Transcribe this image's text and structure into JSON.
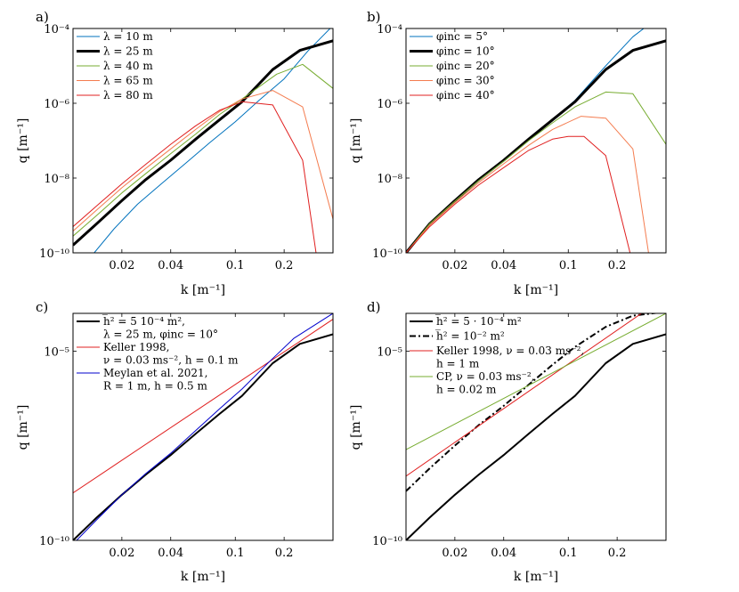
{
  "chart_data": [
    {
      "type": "line",
      "panel_label": "a)",
      "xlabel": "k [m⁻¹]",
      "ylabel": "q [m⁻¹]",
      "xscale": "log",
      "yscale": "log",
      "xlim": [
        0.01,
        0.4
      ],
      "ylim": [
        1e-10,
        0.0001
      ],
      "xticks": [
        0.02,
        0.04,
        0.1,
        0.2
      ],
      "xtick_labels": [
        "0.02",
        "0.04",
        "0.1",
        "0.2"
      ],
      "yticks": [
        1e-10,
        1e-08,
        1e-06,
        0.0001
      ],
      "ytick_labels": [
        "10⁻¹⁰",
        "10⁻⁸",
        "10⁻⁶",
        "10⁻⁴"
      ],
      "legend_location": "top-left",
      "series": [
        {
          "name": "λ = 10 m",
          "color": "#0072BD",
          "width": 1,
          "x": [
            0.01,
            0.0135,
            0.018,
            0.025,
            0.035,
            0.05,
            0.07,
            0.1,
            0.14,
            0.2,
            0.28,
            0.4
          ],
          "y": [
            1e-11,
            1e-10,
            4.5e-10,
            2e-09,
            7e-09,
            2.6e-08,
            9e-08,
            3.2e-07,
            1.2e-06,
            4.5e-06,
            2.5e-05,
            0.00012
          ]
        },
        {
          "name": "λ = 25 m",
          "color": "#000000",
          "width": 3,
          "x": [
            0.01,
            0.014,
            0.02,
            0.028,
            0.04,
            0.057,
            0.08,
            0.11,
            0.17,
            0.25,
            0.4
          ],
          "y": [
            1.6e-10,
            6e-10,
            2.5e-09,
            9e-09,
            3e-08,
            1.1e-07,
            3.6e-07,
            1.1e-06,
            8e-06,
            2.6e-05,
            4.7e-05
          ]
        },
        {
          "name": "λ = 40 m",
          "color": "#77AC30",
          "width": 1,
          "x": [
            0.01,
            0.014,
            0.02,
            0.028,
            0.04,
            0.057,
            0.08,
            0.11,
            0.18,
            0.26,
            0.4
          ],
          "y": [
            2.8e-10,
            1e-09,
            4e-09,
            1.3e-08,
            4.5e-08,
            1.5e-07,
            5e-07,
            1.3e-06,
            6e-06,
            1.1e-05,
            2.5e-06
          ]
        },
        {
          "name": "λ = 65 m",
          "color": "#F47C4F",
          "width": 1,
          "x": [
            0.01,
            0.014,
            0.02,
            0.028,
            0.04,
            0.057,
            0.08,
            0.11,
            0.17,
            0.26,
            0.4
          ],
          "y": [
            3.8e-10,
            1.4e-09,
            5.5e-09,
            1.8e-08,
            6e-08,
            2e-07,
            6e-07,
            1.3e-06,
            2.2e-06,
            8e-07,
            8e-10
          ]
        },
        {
          "name": "λ = 80 m",
          "color": "#E02020",
          "width": 1,
          "x": [
            0.01,
            0.014,
            0.02,
            0.028,
            0.04,
            0.057,
            0.08,
            0.11,
            0.17,
            0.26,
            0.32
          ],
          "y": [
            5e-10,
            1.8e-09,
            7e-09,
            2.3e-08,
            8e-08,
            2.5e-07,
            6.5e-07,
            1.1e-06,
            9e-07,
            3e-08,
            6e-11
          ]
        }
      ]
    },
    {
      "type": "line",
      "panel_label": "b)",
      "xlabel": "k [m⁻¹]",
      "ylabel": "q [m⁻¹]",
      "xscale": "log",
      "yscale": "log",
      "xlim": [
        0.01,
        0.4
      ],
      "ylim": [
        1e-10,
        0.0001
      ],
      "xticks": [
        0.02,
        0.04,
        0.1,
        0.2
      ],
      "xtick_labels": [
        "0.02",
        "0.04",
        "0.1",
        "0.2"
      ],
      "yticks": [
        1e-10,
        1e-08,
        1e-06,
        0.0001
      ],
      "ytick_labels": [
        "10⁻¹⁰",
        "10⁻⁸",
        "10⁻⁶",
        "10⁻⁴"
      ],
      "legend_location": "top-left",
      "series": [
        {
          "name": "φinc = 5°",
          "color": "#0072BD",
          "width": 1,
          "x": [
            0.01,
            0.014,
            0.02,
            0.028,
            0.04,
            0.057,
            0.08,
            0.11,
            0.17,
            0.25,
            0.3
          ],
          "y": [
            1e-10,
            6e-10,
            2.5e-09,
            9e-09,
            3e-08,
            1.1e-07,
            3.6e-07,
            1.2e-06,
            1e-05,
            6e-05,
            0.00011
          ]
        },
        {
          "name": "φinc = 10°",
          "color": "#000000",
          "width": 3,
          "x": [
            0.01,
            0.014,
            0.02,
            0.028,
            0.04,
            0.057,
            0.08,
            0.11,
            0.17,
            0.25,
            0.4
          ],
          "y": [
            1e-10,
            6e-10,
            2.5e-09,
            9e-09,
            3e-08,
            1.1e-07,
            3.6e-07,
            1.1e-06,
            8e-06,
            2.6e-05,
            4.7e-05
          ]
        },
        {
          "name": "φinc = 20°",
          "color": "#77AC30",
          "width": 1,
          "x": [
            0.01,
            0.014,
            0.02,
            0.028,
            0.04,
            0.057,
            0.08,
            0.11,
            0.17,
            0.25,
            0.4
          ],
          "y": [
            1e-10,
            6e-10,
            2.4e-09,
            8.5e-09,
            2.8e-08,
            1e-07,
            3e-07,
            8e-07,
            2e-06,
            1.8e-06,
            8e-08
          ]
        },
        {
          "name": "φinc = 30°",
          "color": "#F47C4F",
          "width": 1,
          "x": [
            0.01,
            0.014,
            0.02,
            0.028,
            0.04,
            0.057,
            0.08,
            0.12,
            0.17,
            0.25,
            0.32
          ],
          "y": [
            1e-10,
            5.5e-10,
            2.2e-09,
            7.5e-09,
            2.4e-08,
            7.5e-08,
            2e-07,
            4.5e-07,
            4e-07,
            6e-08,
            5e-11
          ]
        },
        {
          "name": "φinc = 40°",
          "color": "#E02020",
          "width": 1,
          "x": [
            0.01,
            0.014,
            0.02,
            0.028,
            0.04,
            0.057,
            0.08,
            0.1,
            0.125,
            0.17,
            0.25
          ],
          "y": [
            1e-10,
            5e-10,
            2e-09,
            6.5e-09,
            1.9e-08,
            5.5e-08,
            1.1e-07,
            1.3e-07,
            1.3e-07,
            4e-08,
            5e-11
          ]
        }
      ]
    },
    {
      "type": "line",
      "panel_label": "c)",
      "xlabel": "k [m⁻¹]",
      "ylabel": "q [m⁻¹]",
      "xscale": "log",
      "yscale": "log",
      "xlim": [
        0.01,
        0.4
      ],
      "ylim": [
        1e-10,
        0.0001
      ],
      "xticks": [
        0.02,
        0.04,
        0.1,
        0.2
      ],
      "xtick_labels": [
        "0.02",
        "0.04",
        "0.1",
        "0.2"
      ],
      "yticks": [
        1e-10,
        1e-05
      ],
      "ytick_labels": [
        "10⁻¹⁰",
        "10⁻⁵"
      ],
      "legend_location": "top-left",
      "series": [
        {
          "name_lines": [
            "h̅² = 5 10⁻⁴ m²,",
            "λ = 25 m, φinc = 10°"
          ],
          "color": "#000000",
          "width": 2,
          "x": [
            0.01,
            0.014,
            0.02,
            0.028,
            0.04,
            0.057,
            0.08,
            0.11,
            0.17,
            0.25,
            0.4
          ],
          "y": [
            1e-10,
            4e-10,
            1.6e-09,
            5.4e-09,
            1.8e-08,
            6.6e-08,
            2.2e-07,
            6.6e-07,
            4.8e-06,
            1.56e-05,
            2.8e-05
          ]
        },
        {
          "name_lines": [
            "Keller 1998,",
            "ν = 0.03 ms⁻², h = 0.1 m"
          ],
          "color": "#E02020",
          "width": 1,
          "x": [
            0.01,
            0.4
          ],
          "y": [
            1.8e-09,
            7e-05
          ]
        },
        {
          "name_lines": [
            "Meylan et al. 2021,",
            "R = 1 m, h = 0.5 m"
          ],
          "color": "#0000CC",
          "width": 1,
          "x": [
            0.01,
            0.014,
            0.02,
            0.028,
            0.04,
            0.057,
            0.08,
            0.11,
            0.16,
            0.23,
            0.4
          ],
          "y": [
            8e-11,
            3.5e-10,
            1.6e-09,
            5.8e-09,
            2e-08,
            8e-08,
            3e-07,
            1e-06,
            5e-06,
            2.2e-05,
            0.0001
          ]
        }
      ]
    },
    {
      "type": "line",
      "panel_label": "d)",
      "xlabel": "k [m⁻¹]",
      "ylabel": "q [m⁻¹]",
      "xscale": "log",
      "yscale": "log",
      "xlim": [
        0.01,
        0.4
      ],
      "ylim": [
        1e-10,
        0.0001
      ],
      "xticks": [
        0.02,
        0.04,
        0.1,
        0.2
      ],
      "xtick_labels": [
        "0.02",
        "0.04",
        "0.1",
        "0.2"
      ],
      "yticks": [
        1e-10,
        1e-05
      ],
      "ytick_labels": [
        "10⁻¹⁰",
        "10⁻⁵"
      ],
      "legend_location": "top-left",
      "series": [
        {
          "name_lines": [
            "h̅² = 5 · 10⁻⁴ m²"
          ],
          "color": "#000000",
          "width": 2,
          "dash": "",
          "x": [
            0.01,
            0.014,
            0.02,
            0.028,
            0.04,
            0.057,
            0.08,
            0.11,
            0.17,
            0.25,
            0.4
          ],
          "y": [
            1e-10,
            4e-10,
            1.6e-09,
            5.4e-09,
            1.8e-08,
            6.6e-08,
            2.2e-07,
            6.6e-07,
            4.8e-06,
            1.56e-05,
            2.8e-05
          ]
        },
        {
          "name_lines": [
            "h̅² = 10⁻² m²"
          ],
          "color": "#000000",
          "width": 2,
          "dash": "7,3,2,3",
          "x": [
            0.01,
            0.014,
            0.02,
            0.028,
            0.04,
            0.057,
            0.08,
            0.11,
            0.17,
            0.25,
            0.4
          ],
          "y": [
            2e-09,
            8e-09,
            3.2e-08,
            1.1e-07,
            3.6e-07,
            1.3e-06,
            4.4e-06,
            1.3e-05,
            4.4e-05,
            8.7e-05,
            0.00011
          ]
        },
        {
          "name_lines": [
            "Keller 1998, ν = 0.03 ms⁻²,",
            "h = 1 m"
          ],
          "color": "#E02020",
          "width": 1,
          "dash": "",
          "x": [
            0.01,
            0.4
          ],
          "y": [
            5e-09,
            0.00028
          ]
        },
        {
          "name_lines": [
            "CP, ν = 0.03 ms⁻²,",
            "h = 0.02 m"
          ],
          "color": "#77AC30",
          "width": 1,
          "dash": "",
          "x": [
            0.01,
            0.4
          ],
          "y": [
            2.5e-08,
            0.0001
          ]
        }
      ]
    }
  ]
}
